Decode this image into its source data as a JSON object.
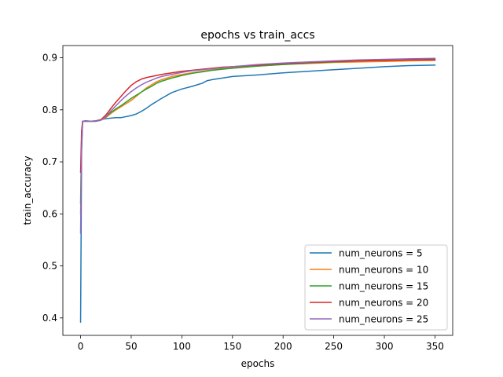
{
  "chart_data": {
    "type": "line",
    "title": "epochs vs train_accs",
    "xlabel": "epochs",
    "ylabel": "train_accuracy",
    "xlim": [
      -17.5,
      367.5
    ],
    "ylim": [
      0.3665,
      0.9235
    ],
    "xticks": [
      0,
      50,
      100,
      150,
      200,
      250,
      300,
      350
    ],
    "xtick_labels": [
      "0",
      "50",
      "100",
      "150",
      "200",
      "250",
      "300",
      "350"
    ],
    "yticks": [
      0.4,
      0.5,
      0.6,
      0.7,
      0.8,
      0.9
    ],
    "ytick_labels": [
      "0.4",
      "0.5",
      "0.6",
      "0.7",
      "0.8",
      "0.9"
    ],
    "grid": false,
    "legend_position": "lower-right",
    "series": [
      {
        "name": "num_neurons = 5",
        "color": "#1f77b4",
        "x": [
          0,
          1,
          2,
          5,
          10,
          15,
          20,
          25,
          30,
          35,
          40,
          45,
          50,
          55,
          60,
          65,
          70,
          75,
          80,
          90,
          100,
          110,
          120,
          125,
          130,
          140,
          150,
          175,
          200,
          225,
          250,
          275,
          300,
          325,
          350
        ],
        "y": [
          0.392,
          0.72,
          0.778,
          0.779,
          0.778,
          0.779,
          0.781,
          0.783,
          0.784,
          0.785,
          0.785,
          0.787,
          0.789,
          0.792,
          0.797,
          0.803,
          0.81,
          0.816,
          0.822,
          0.833,
          0.84,
          0.845,
          0.851,
          0.856,
          0.858,
          0.861,
          0.864,
          0.867,
          0.871,
          0.874,
          0.877,
          0.88,
          0.883,
          0.885,
          0.886
        ]
      },
      {
        "name": "num_neurons = 10",
        "color": "#ff7f0e",
        "x": [
          0,
          1,
          2,
          5,
          10,
          15,
          20,
          25,
          30,
          35,
          40,
          45,
          50,
          55,
          60,
          65,
          70,
          75,
          80,
          90,
          100,
          110,
          120,
          130,
          140,
          150,
          175,
          200,
          225,
          250,
          275,
          300,
          325,
          350
        ],
        "y": [
          0.6,
          0.74,
          0.778,
          0.778,
          0.778,
          0.778,
          0.78,
          0.785,
          0.793,
          0.8,
          0.806,
          0.812,
          0.818,
          0.826,
          0.834,
          0.842,
          0.848,
          0.854,
          0.858,
          0.864,
          0.868,
          0.871,
          0.874,
          0.877,
          0.879,
          0.881,
          0.884,
          0.887,
          0.889,
          0.891,
          0.892,
          0.893,
          0.894,
          0.895
        ]
      },
      {
        "name": "num_neurons = 15",
        "color": "#2ca02c",
        "x": [
          0,
          1,
          2,
          5,
          10,
          15,
          20,
          25,
          30,
          35,
          40,
          45,
          50,
          55,
          60,
          65,
          70,
          75,
          80,
          90,
          100,
          110,
          120,
          130,
          140,
          150,
          175,
          200,
          225,
          250,
          275,
          300,
          325,
          350
        ],
        "y": [
          0.62,
          0.75,
          0.778,
          0.778,
          0.778,
          0.778,
          0.78,
          0.787,
          0.795,
          0.802,
          0.808,
          0.815,
          0.822,
          0.828,
          0.834,
          0.84,
          0.845,
          0.851,
          0.855,
          0.861,
          0.866,
          0.87,
          0.873,
          0.876,
          0.878,
          0.88,
          0.884,
          0.887,
          0.89,
          0.892,
          0.894,
          0.895,
          0.896,
          0.897
        ]
      },
      {
        "name": "num_neurons = 20",
        "color": "#d62728",
        "x": [
          0,
          1,
          2,
          5,
          10,
          15,
          20,
          25,
          30,
          35,
          40,
          45,
          50,
          55,
          60,
          65,
          70,
          75,
          80,
          90,
          100,
          110,
          120,
          130,
          140,
          150,
          175,
          200,
          225,
          250,
          275,
          300,
          325,
          350
        ],
        "y": [
          0.68,
          0.76,
          0.778,
          0.778,
          0.778,
          0.778,
          0.781,
          0.79,
          0.803,
          0.815,
          0.826,
          0.837,
          0.847,
          0.854,
          0.859,
          0.862,
          0.864,
          0.866,
          0.868,
          0.871,
          0.874,
          0.876,
          0.878,
          0.88,
          0.882,
          0.883,
          0.886,
          0.889,
          0.891,
          0.893,
          0.894,
          0.895,
          0.896,
          0.896
        ]
      },
      {
        "name": "num_neurons = 25",
        "color": "#9467bd",
        "x": [
          0,
          1,
          2,
          5,
          10,
          15,
          20,
          25,
          30,
          35,
          40,
          45,
          50,
          55,
          60,
          65,
          70,
          75,
          80,
          90,
          100,
          110,
          120,
          130,
          140,
          150,
          175,
          200,
          225,
          250,
          275,
          300,
          325,
          350
        ],
        "y": [
          0.563,
          0.73,
          0.778,
          0.778,
          0.778,
          0.778,
          0.78,
          0.787,
          0.798,
          0.808,
          0.818,
          0.827,
          0.835,
          0.842,
          0.848,
          0.853,
          0.857,
          0.861,
          0.864,
          0.868,
          0.872,
          0.875,
          0.877,
          0.879,
          0.881,
          0.883,
          0.887,
          0.89,
          0.892,
          0.894,
          0.896,
          0.897,
          0.898,
          0.899
        ]
      }
    ]
  }
}
